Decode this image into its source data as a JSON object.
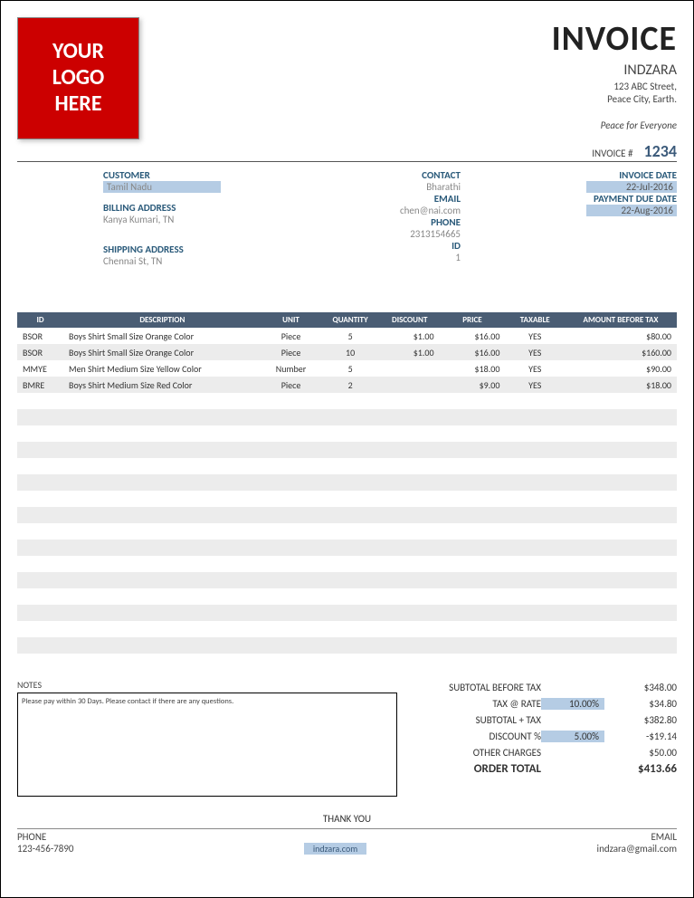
{
  "logo": {
    "line1": "YOUR",
    "line2": "LOGO",
    "line3": "HERE"
  },
  "header": {
    "title": "INVOICE",
    "company": "INDZARA",
    "addr1": "123 ABC Street,",
    "addr2": "Peace City, Earth.",
    "tagline": "Peace for Everyone",
    "invnum_lbl": "INVOICE #",
    "invnum": "1234"
  },
  "customer": {
    "customer_lbl": "CUSTOMER",
    "customer": "Tamil Nadu",
    "billing_lbl": "BILLING ADDRESS",
    "billing": "Kanya Kumari, TN",
    "shipping_lbl": "SHIPPING ADDRESS",
    "shipping": "Chennai St, TN"
  },
  "contact": {
    "contact_lbl": "CONTACT",
    "contact": "Bharathi",
    "email_lbl": "EMAIL",
    "email": "chen@nai.com",
    "phone_lbl": "PHONE",
    "phone": "2313154665",
    "id_lbl": "ID",
    "id": "1"
  },
  "dates": {
    "invdate_lbl": "INVOICE DATE",
    "invdate": "22-Jul-2016",
    "due_lbl": "PAYMENT DUE DATE",
    "due": "22-Aug-2016"
  },
  "columns": {
    "id": "ID",
    "desc": "DESCRIPTION",
    "unit": "UNIT",
    "qty": "QUANTITY",
    "disc": "DISCOUNT",
    "price": "PRICE",
    "tax": "TAXABLE",
    "amt": "AMOUNT BEFORE TAX"
  },
  "rows": [
    {
      "id": "BSOR",
      "desc": "Boys Shirt Small Size Orange Color",
      "unit": "Piece",
      "qty": "5",
      "disc": "$1.00",
      "price": "$16.00",
      "tax": "YES",
      "amt": "$80.00"
    },
    {
      "id": "BSOR",
      "desc": "Boys Shirt Small Size Orange Color",
      "unit": "Piece",
      "qty": "10",
      "disc": "$1.00",
      "price": "$16.00",
      "tax": "YES",
      "amt": "$160.00"
    },
    {
      "id": "MMYE",
      "desc": "Men Shirt Medium Size Yellow Color",
      "unit": "Number",
      "qty": "5",
      "disc": "",
      "price": "$18.00",
      "tax": "YES",
      "amt": "$90.00"
    },
    {
      "id": "BMRE",
      "desc": "Boys Shirt Medium Size Red Color",
      "unit": "Piece",
      "qty": "2",
      "disc": "",
      "price": "$9.00",
      "tax": "YES",
      "amt": "$18.00"
    }
  ],
  "empty_rows": 17,
  "notes": {
    "lbl": "NOTES",
    "text": "Please pay within 30 Days. Please contact if there are any questions."
  },
  "totals": {
    "subtotal_lbl": "SUBTOTAL BEFORE TAX",
    "subtotal": "$348.00",
    "taxrate_lbl": "TAX @ RATE",
    "taxrate": "10.00%",
    "tax": "$34.80",
    "subtax_lbl": "SUBTOTAL + TAX",
    "subtax": "$382.80",
    "discpct_lbl": "DISCOUNT %",
    "discpct": "5.00%",
    "disc": "-$19.14",
    "other_lbl": "OTHER CHARGES",
    "other": "$50.00",
    "total_lbl": "ORDER TOTAL",
    "total": "$413.66"
  },
  "thanks": "THANK YOU",
  "footer": {
    "phone_lbl": "PHONE",
    "phone": "123-456-7890",
    "site": "indzara.com",
    "email_lbl": "EMAIL",
    "email": "indzara@gmail.com"
  },
  "colors": {
    "header_bg": "#4a5d74",
    "highlight": "#b5cce4",
    "logo_bg": "#cc0000"
  }
}
